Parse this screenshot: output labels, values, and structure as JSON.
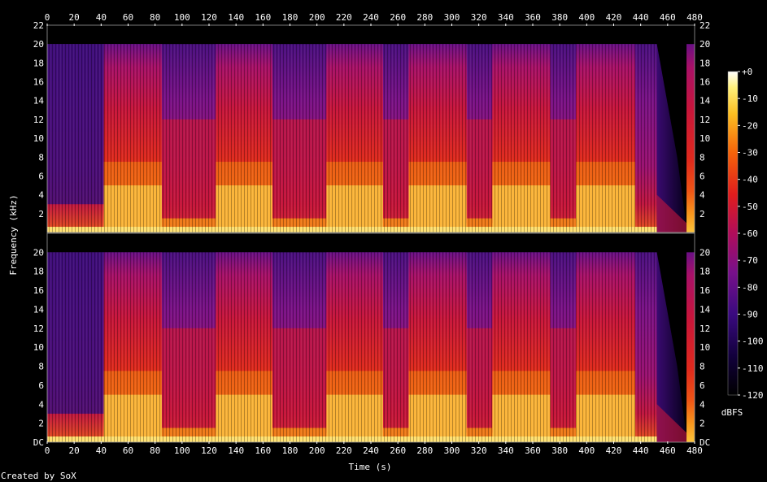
{
  "chart_data": {
    "type": "heatmap",
    "title": "",
    "xlabel": "Time (s)",
    "ylabel": "Frequency (kHz)",
    "xlim": [
      0,
      480
    ],
    "ylim_khz": [
      0,
      22
    ],
    "x_ticks": [
      0,
      20,
      40,
      60,
      80,
      100,
      120,
      140,
      160,
      180,
      200,
      220,
      240,
      260,
      280,
      300,
      320,
      340,
      360,
      380,
      400,
      420,
      440,
      460,
      480
    ],
    "y_ticks_top": [
      "2",
      "4",
      "6",
      "8",
      "10",
      "12",
      "14",
      "16",
      "18",
      "20",
      "22"
    ],
    "y_ticks_bottom": [
      "DC",
      "2",
      "4",
      "6",
      "8",
      "10",
      "12",
      "14",
      "16",
      "18",
      "20"
    ],
    "channels": 2,
    "bandwidth_cutoff_khz": 20,
    "content_end_s": 452,
    "loud_segments_s": [
      [
        42,
        85
      ],
      [
        125,
        167
      ],
      [
        207,
        249
      ],
      [
        268,
        311
      ],
      [
        330,
        373
      ],
      [
        392,
        436
      ]
    ],
    "colorbar": {
      "label": "dBFS",
      "range_db": [
        -120,
        0
      ],
      "ticks": [
        "+0",
        "-10",
        "-20",
        "-30",
        "-40",
        "-50",
        "-60",
        "-70",
        "-80",
        "-90",
        "-100",
        "-110",
        "-120"
      ]
    },
    "footer": "Created by SoX"
  }
}
